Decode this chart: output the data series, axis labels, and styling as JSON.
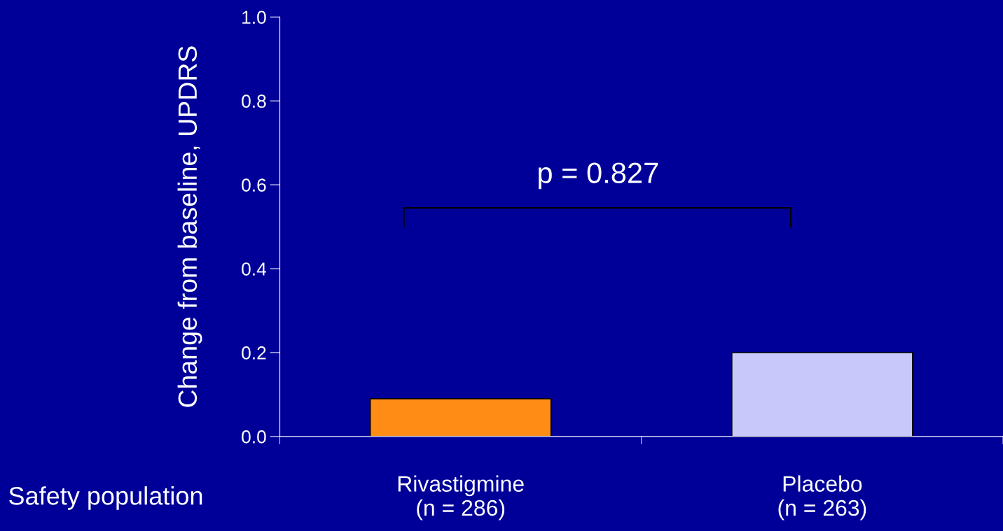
{
  "chart_data": {
    "type": "bar",
    "ylabel": "Change from baseline, UPDRS",
    "categories": [
      "Rivastigmine\n(n = 286)",
      "Placebo\n(n = 263)"
    ],
    "values": [
      0.09,
      0.2
    ],
    "colors": [
      "#ff8c14",
      "#c8c8fa"
    ],
    "ylim": [
      0,
      1.0
    ],
    "yticks": [
      {
        "value": 0,
        "label": "0.0"
      },
      0.2,
      0.4,
      0.6,
      0.8,
      {
        "value": 1,
        "label": "1.0"
      }
    ],
    "grid": false,
    "legend": false,
    "annotations": [
      "p = 0.827",
      "Safety population"
    ]
  }
}
